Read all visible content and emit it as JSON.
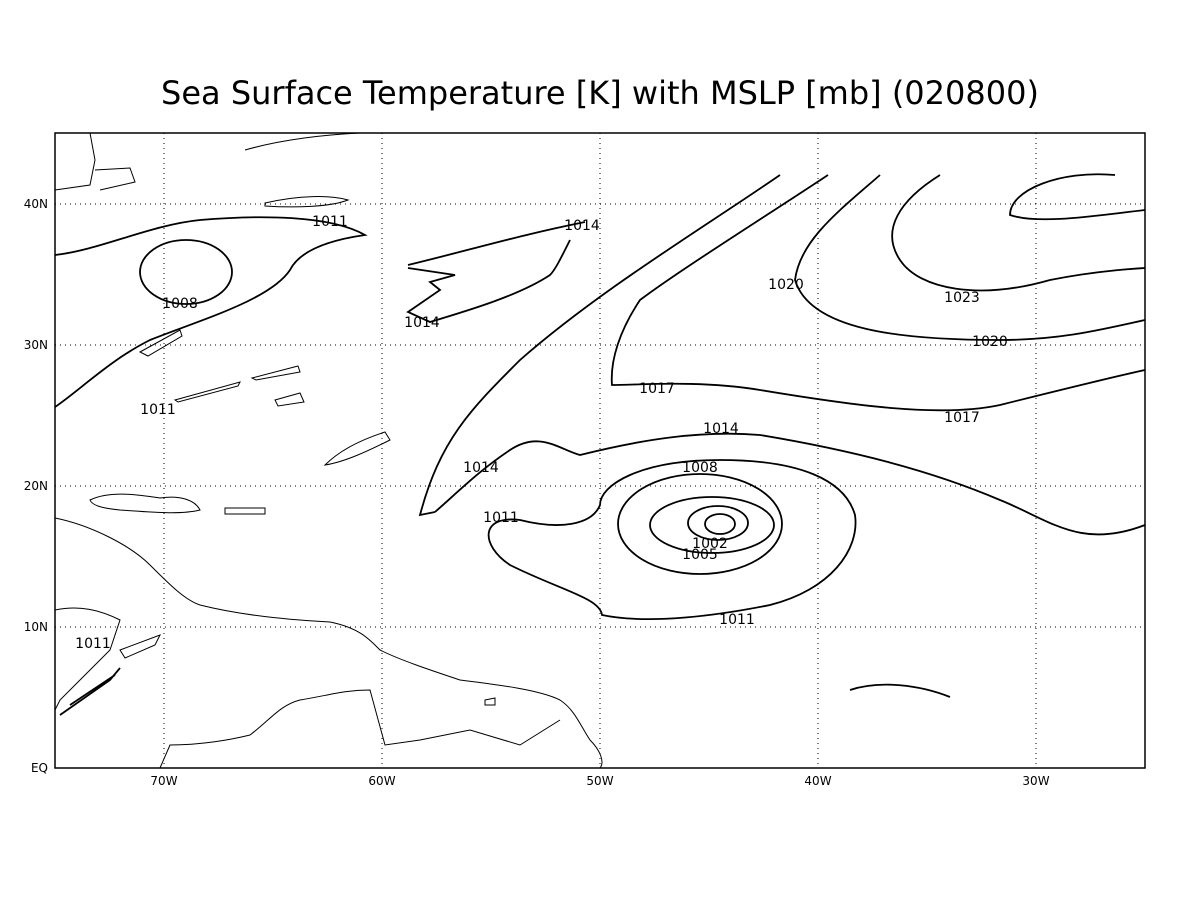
{
  "map": {
    "title": "Sea Surface Temperature [K] with MSLP [mb] (020800)",
    "xticks": [
      "70W",
      "60W",
      "50W",
      "40W",
      "30W"
    ],
    "yticks": [
      "EQ",
      "10N",
      "20N",
      "30N",
      "40N"
    ],
    "contour_labels": [
      1011,
      1008,
      1011,
      1014,
      1014,
      1020,
      1023,
      1020,
      1017,
      1017,
      1014,
      1014,
      1008,
      1011,
      1002,
      1005,
      1011,
      1011
    ]
  }
}
